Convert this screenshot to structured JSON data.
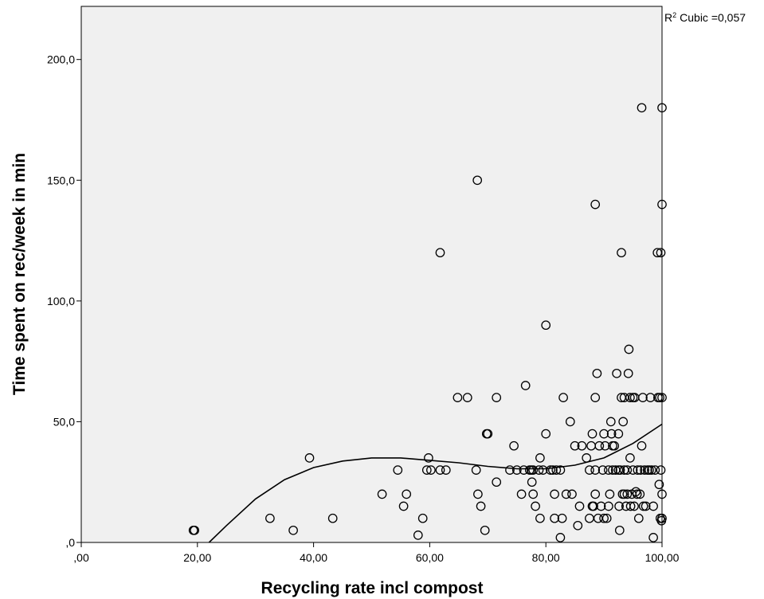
{
  "chart_data": {
    "type": "scatter",
    "xlabel": "Recycling rate incl compost",
    "ylabel": "Time spent on rec/week in min",
    "xlim": [
      0,
      100
    ],
    "ylim": [
      0,
      222
    ],
    "x_ticks": [
      0,
      20,
      40,
      60,
      80,
      100
    ],
    "x_tick_labels": [
      ",00",
      "20,00",
      "40,00",
      "60,00",
      "80,00",
      "100,00"
    ],
    "y_ticks": [
      0,
      50,
      100,
      150,
      200
    ],
    "y_tick_labels": [
      ",0",
      "50,0",
      "100,0",
      "150,0",
      "200,0"
    ],
    "grid": false,
    "fit_line": {
      "type": "cubic",
      "r2_symbol": "R",
      "r2_superscript": "2",
      "label": "Cubic =0,057",
      "points": [
        [
          22,
          0
        ],
        [
          25,
          7
        ],
        [
          30,
          18
        ],
        [
          35,
          26
        ],
        [
          40,
          31
        ],
        [
          45,
          33.7
        ],
        [
          50,
          35
        ],
        [
          55,
          35
        ],
        [
          60,
          34
        ],
        [
          65,
          33
        ],
        [
          70,
          31.5
        ],
        [
          75,
          30.5
        ],
        [
          80,
          30.5
        ],
        [
          85,
          32
        ],
        [
          90,
          35
        ],
        [
          95,
          41
        ],
        [
          100,
          49
        ]
      ]
    },
    "points": [
      [
        19.3,
        5
      ],
      [
        19.5,
        5
      ],
      [
        32.5,
        10
      ],
      [
        36.5,
        5
      ],
      [
        39.3,
        35
      ],
      [
        43.3,
        10
      ],
      [
        51.8,
        20
      ],
      [
        54.5,
        30
      ],
      [
        55.5,
        15
      ],
      [
        56,
        20
      ],
      [
        58,
        3
      ],
      [
        58.8,
        10
      ],
      [
        59.5,
        30
      ],
      [
        59.8,
        35
      ],
      [
        60.2,
        30
      ],
      [
        61.8,
        120
      ],
      [
        61.8,
        30
      ],
      [
        62.8,
        30
      ],
      [
        64.8,
        60
      ],
      [
        66.5,
        60
      ],
      [
        68,
        30
      ],
      [
        68.2,
        150
      ],
      [
        68.3,
        20
      ],
      [
        68.8,
        15
      ],
      [
        69.5,
        5
      ],
      [
        69.8,
        45
      ],
      [
        70,
        45
      ],
      [
        71.5,
        60
      ],
      [
        71.5,
        25
      ],
      [
        73.8,
        30
      ],
      [
        74.5,
        40
      ],
      [
        75,
        30
      ],
      [
        75.8,
        20
      ],
      [
        76.2,
        30
      ],
      [
        76.5,
        65
      ],
      [
        77.2,
        30
      ],
      [
        77.5,
        30
      ],
      [
        77.6,
        25
      ],
      [
        77.8,
        30
      ],
      [
        77.8,
        20
      ],
      [
        78.2,
        15
      ],
      [
        78.8,
        30
      ],
      [
        79,
        35
      ],
      [
        79,
        10
      ],
      [
        79.5,
        30
      ],
      [
        80,
        90
      ],
      [
        80,
        45
      ],
      [
        80.8,
        30
      ],
      [
        81.2,
        30
      ],
      [
        81.5,
        10
      ],
      [
        81.5,
        20
      ],
      [
        81.8,
        30
      ],
      [
        82.5,
        30
      ],
      [
        82.5,
        2
      ],
      [
        82.8,
        10
      ],
      [
        83,
        60
      ],
      [
        83.5,
        20
      ],
      [
        84.2,
        50
      ],
      [
        84.5,
        20
      ],
      [
        85,
        40
      ],
      [
        85.5,
        7
      ],
      [
        85.8,
        15
      ],
      [
        86.2,
        40
      ],
      [
        87,
        35
      ],
      [
        87.5,
        30
      ],
      [
        87.5,
        10
      ],
      [
        87.8,
        40
      ],
      [
        88,
        45
      ],
      [
        88,
        15
      ],
      [
        88.2,
        15
      ],
      [
        88.5,
        60
      ],
      [
        88.5,
        140
      ],
      [
        88.5,
        20
      ],
      [
        88.5,
        30
      ],
      [
        88.8,
        70
      ],
      [
        89,
        10
      ],
      [
        89.2,
        40
      ],
      [
        89.5,
        15
      ],
      [
        89.8,
        30
      ],
      [
        90,
        10
      ],
      [
        90,
        45
      ],
      [
        90.2,
        40
      ],
      [
        90.5,
        10
      ],
      [
        90.8,
        30
      ],
      [
        90.8,
        15
      ],
      [
        91,
        20
      ],
      [
        91.2,
        50
      ],
      [
        91.3,
        45
      ],
      [
        91.5,
        30
      ],
      [
        91.5,
        40
      ],
      [
        91.8,
        40
      ],
      [
        92,
        30
      ],
      [
        92.2,
        70
      ],
      [
        92.5,
        30
      ],
      [
        92.5,
        45
      ],
      [
        92.6,
        15
      ],
      [
        92.7,
        5
      ],
      [
        92.8,
        30
      ],
      [
        93,
        120
      ],
      [
        93,
        60
      ],
      [
        93.2,
        20
      ],
      [
        93.3,
        50
      ],
      [
        93.5,
        20
      ],
      [
        93.5,
        30
      ],
      [
        93.5,
        60
      ],
      [
        93.8,
        15
      ],
      [
        94,
        20
      ],
      [
        94,
        30
      ],
      [
        94.2,
        70
      ],
      [
        94.3,
        80
      ],
      [
        94.5,
        60
      ],
      [
        94.5,
        35
      ],
      [
        94.6,
        15
      ],
      [
        94.8,
        20
      ],
      [
        95,
        30
      ],
      [
        95,
        60
      ],
      [
        95.2,
        15
      ],
      [
        95.3,
        60
      ],
      [
        95.5,
        21
      ],
      [
        95.7,
        20
      ],
      [
        95.8,
        30
      ],
      [
        96,
        10
      ],
      [
        96.2,
        20
      ],
      [
        96.3,
        30
      ],
      [
        96.5,
        180
      ],
      [
        96.5,
        40
      ],
      [
        96.7,
        60
      ],
      [
        96.8,
        15
      ],
      [
        97,
        30
      ],
      [
        97.2,
        15
      ],
      [
        97.5,
        30
      ],
      [
        97.8,
        30
      ],
      [
        98,
        60
      ],
      [
        98.2,
        30
      ],
      [
        98.5,
        2
      ],
      [
        98.5,
        15
      ],
      [
        98.8,
        30
      ],
      [
        99.2,
        120
      ],
      [
        99.3,
        60
      ],
      [
        99.5,
        24
      ],
      [
        99.6,
        60
      ],
      [
        99.7,
        10
      ],
      [
        99.8,
        120
      ],
      [
        99.8,
        30
      ],
      [
        99.9,
        9
      ],
      [
        100,
        180
      ],
      [
        100,
        140
      ],
      [
        100,
        60
      ],
      [
        100,
        20
      ],
      [
        100,
        10
      ]
    ]
  }
}
